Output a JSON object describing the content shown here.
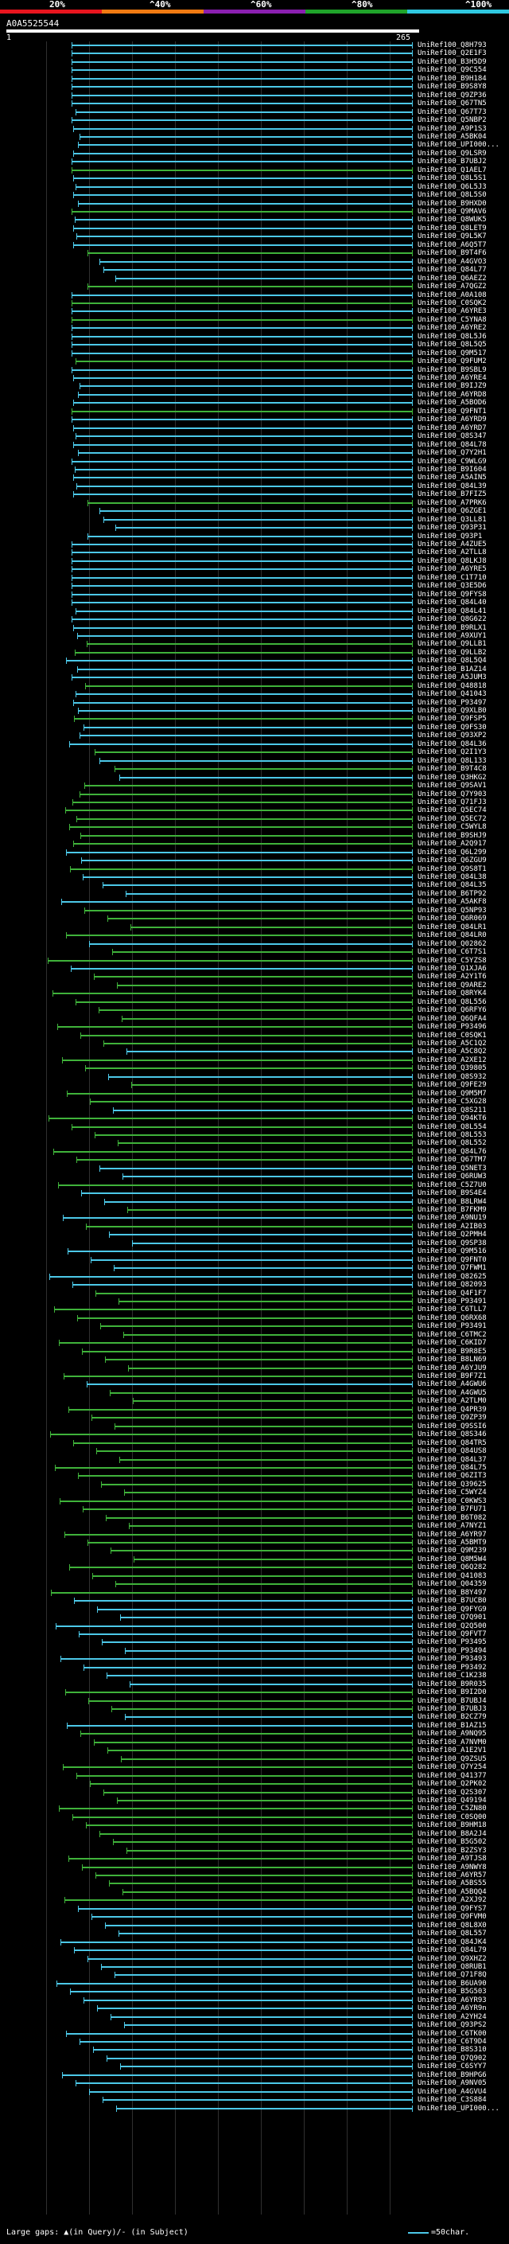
{
  "header": {
    "scale_labels": [
      "20%",
      "^40%",
      "^60%",
      "^80%",
      "^100%"
    ],
    "scale_colors": [
      "#e8151e",
      "#f07a12",
      "#8a1fb0",
      "#1fa32a",
      "#2fc8e0"
    ],
    "query_name": "A0A5525544",
    "range_start": "1",
    "range_end": "265"
  },
  "colors": {
    "cyan": "#4cc8e8",
    "green": "#3fb23a",
    "axis": "#2f2f2f"
  },
  "hits": [
    {
      "label": "UniRef100_Q8H793",
      "color": "cyan"
    },
    {
      "label": "UniRef100_Q2E1F3",
      "color": "cyan"
    },
    {
      "label": "UniRef100_B3H5D9",
      "color": "cyan"
    },
    {
      "label": "UniRef100_Q9C554",
      "color": "cyan"
    },
    {
      "label": "UniRef100_B9H184",
      "color": "cyan"
    },
    {
      "label": "UniRef100_B9S8Y8",
      "color": "cyan"
    },
    {
      "label": "UniRef100_Q9ZP36",
      "color": "cyan"
    },
    {
      "label": "UniRef100_Q67TN5",
      "color": "cyan"
    },
    {
      "label": "UniRef100_Q67T73",
      "color": "cyan"
    },
    {
      "label": "UniRef100_Q5NBP2",
      "color": "cyan"
    },
    {
      "label": "UniRef100_A9P1S3",
      "color": "cyan"
    },
    {
      "label": "UniRef100_A5BK04",
      "color": "cyan"
    },
    {
      "label": "UniRef100_UPI000...",
      "color": "cyan"
    },
    {
      "label": "UniRef100_Q9LSR9",
      "color": "cyan"
    },
    {
      "label": "UniRef100_B7UBJ2",
      "color": "cyan"
    },
    {
      "label": "UniRef100_Q1AEL7",
      "color": "green"
    },
    {
      "label": "UniRef100_Q8L5S1",
      "color": "cyan"
    },
    {
      "label": "UniRef100_Q6L5J3",
      "color": "cyan"
    },
    {
      "label": "UniRef100_Q8L5S0",
      "color": "cyan"
    },
    {
      "label": "UniRef100_B9HXD0",
      "color": "cyan"
    },
    {
      "label": "UniRef100_Q9MAV6",
      "color": "green"
    },
    {
      "label": "UniRef100_Q8WUK5",
      "color": "cyan"
    },
    {
      "label": "UniRef100_Q8LET9",
      "color": "cyan"
    },
    {
      "label": "UniRef100_Q9L5K7",
      "color": "cyan"
    },
    {
      "label": "UniRef100_A6Q5T7",
      "color": "cyan"
    },
    {
      "label": "UniRef100_B9T4F6",
      "color": "green"
    },
    {
      "label": "UniRef100_A4GVO3",
      "color": "cyan"
    },
    {
      "label": "UniRef100_Q84L77",
      "color": "cyan"
    },
    {
      "label": "UniRef100_Q6AEZ2",
      "color": "cyan"
    },
    {
      "label": "UniRef100_A7QGZ2",
      "color": "green"
    },
    {
      "label": "UniRef100_A0A108",
      "color": "cyan"
    },
    {
      "label": "UniRef100_C0SQK2",
      "color": "green"
    },
    {
      "label": "UniRef100_A6YRE3",
      "color": "cyan"
    },
    {
      "label": "UniRef100_C5YNA8",
      "color": "green"
    },
    {
      "label": "UniRef100_A6YRE2",
      "color": "cyan"
    },
    {
      "label": "UniRef100_Q8L5J6",
      "color": "cyan"
    },
    {
      "label": "UniRef100_Q8L5Q5",
      "color": "cyan"
    },
    {
      "label": "UniRef100_Q9M517",
      "color": "cyan"
    },
    {
      "label": "UniRef100_Q9FUM2",
      "color": "green"
    },
    {
      "label": "UniRef100_B9SBL9",
      "color": "cyan"
    },
    {
      "label": "UniRef100_A6YRE4",
      "color": "cyan"
    },
    {
      "label": "UniRef100_B9IJZ9",
      "color": "cyan"
    },
    {
      "label": "UniRef100_A6YRD8",
      "color": "cyan"
    },
    {
      "label": "UniRef100_A5BOD6",
      "color": "cyan"
    },
    {
      "label": "UniRef100_Q9FNT1",
      "color": "green"
    },
    {
      "label": "UniRef100_A6YRD9",
      "color": "cyan"
    },
    {
      "label": "UniRef100_A6YRD7",
      "color": "cyan"
    },
    {
      "label": "UniRef100_Q8S347",
      "color": "cyan"
    },
    {
      "label": "UniRef100_Q84L78",
      "color": "cyan"
    },
    {
      "label": "UniRef100_Q7Y2H1",
      "color": "cyan"
    },
    {
      "label": "UniRef100_C9WLG9",
      "color": "cyan"
    },
    {
      "label": "UniRef100_B9I604",
      "color": "cyan"
    },
    {
      "label": "UniRef100_A5AIN5",
      "color": "cyan"
    },
    {
      "label": "UniRef100_Q84L39",
      "color": "cyan"
    },
    {
      "label": "UniRef100_B7FIZ5",
      "color": "cyan"
    },
    {
      "label": "UniRef100_A7PRK6",
      "color": "green"
    },
    {
      "label": "UniRef100_Q6ZGE1",
      "color": "cyan"
    },
    {
      "label": "UniRef100_Q3LL81",
      "color": "cyan"
    },
    {
      "label": "UniRef100_Q93P31",
      "color": "cyan"
    },
    {
      "label": "UniRef100_Q93P1",
      "color": "cyan"
    },
    {
      "label": "UniRef100_A4ZUE5",
      "color": "cyan"
    },
    {
      "label": "UniRef100_A2TLL8",
      "color": "cyan"
    },
    {
      "label": "UniRef100_Q8LKJ8",
      "color": "cyan"
    },
    {
      "label": "UniRef100_A6YRE5",
      "color": "cyan"
    },
    {
      "label": "UniRef100_C1T710",
      "color": "cyan"
    },
    {
      "label": "UniRef100_Q3E5D6",
      "color": "cyan"
    },
    {
      "label": "UniRef100_Q9FYS8",
      "color": "cyan"
    },
    {
      "label": "UniRef100_Q84L40",
      "color": "cyan"
    },
    {
      "label": "UniRef100_Q84L41",
      "color": "cyan"
    },
    {
      "label": "UniRef100_Q8G622",
      "color": "cyan"
    },
    {
      "label": "UniRef100_B9RLX1",
      "color": "cyan"
    },
    {
      "label": "UniRef100_A9XUY1",
      "color": "cyan"
    },
    {
      "label": "UniRef100_Q9LLB1",
      "color": "green"
    },
    {
      "label": "UniRef100_Q9LLB2",
      "color": "green"
    },
    {
      "label": "UniRef100_Q8L5Q4",
      "color": "cyan"
    },
    {
      "label": "UniRef100_B1AZ14",
      "color": "cyan"
    },
    {
      "label": "UniRef100_A5JUM3",
      "color": "cyan"
    },
    {
      "label": "UniRef100_Q48818",
      "color": "green"
    },
    {
      "label": "UniRef100_Q41043",
      "color": "cyan"
    },
    {
      "label": "UniRef100_P93497",
      "color": "cyan"
    },
    {
      "label": "UniRef100_Q9XLB0",
      "color": "cyan"
    },
    {
      "label": "UniRef100_Q9FSP5",
      "color": "green"
    },
    {
      "label": "UniRef100_Q9FS30",
      "color": "cyan"
    },
    {
      "label": "UniRef100_Q93XP2",
      "color": "cyan"
    },
    {
      "label": "UniRef100_Q84L36",
      "color": "cyan"
    },
    {
      "label": "UniRef100_Q2I1Y3",
      "color": "green"
    },
    {
      "label": "UniRef100_Q8L133",
      "color": "cyan"
    },
    {
      "label": "UniRef100_B9T4C8",
      "color": "green"
    },
    {
      "label": "UniRef100_Q3HKG2",
      "color": "cyan"
    },
    {
      "label": "UniRef100_Q9SAV1",
      "color": "green"
    },
    {
      "label": "UniRef100_Q7Y903",
      "color": "green"
    },
    {
      "label": "UniRef100_Q71FJ3",
      "color": "green"
    },
    {
      "label": "UniRef100_Q5EC74",
      "color": "green"
    },
    {
      "label": "UniRef100_Q5EC72",
      "color": "green"
    },
    {
      "label": "UniRef100_C5WYL8",
      "color": "green"
    },
    {
      "label": "UniRef100_B9SHJ9",
      "color": "green"
    },
    {
      "label": "UniRef100_A2Q917",
      "color": "green"
    },
    {
      "label": "UniRef100_Q6L299",
      "color": "cyan"
    },
    {
      "label": "UniRef100_Q6ZGU9",
      "color": "cyan"
    },
    {
      "label": "UniRef100_Q9S8T1",
      "color": "green"
    },
    {
      "label": "UniRef100_Q84L38",
      "color": "cyan"
    },
    {
      "label": "UniRef100_Q84L35",
      "color": "cyan"
    },
    {
      "label": "UniRef100_B6TP92",
      "color": "cyan"
    },
    {
      "label": "UniRef100_A5AKF8",
      "color": "cyan"
    },
    {
      "label": "UniRef100_Q5NP93",
      "color": "green"
    },
    {
      "label": "UniRef100_Q6R069",
      "color": "green"
    },
    {
      "label": "UniRef100_Q84LR1",
      "color": "green"
    },
    {
      "label": "UniRef100_Q84LR0",
      "color": "green"
    },
    {
      "label": "UniRef100_Q02862",
      "color": "cyan"
    },
    {
      "label": "UniRef100_C6T7S1",
      "color": "green"
    },
    {
      "label": "UniRef100_C5YZS8",
      "color": "green"
    },
    {
      "label": "UniRef100_Q1XJA6",
      "color": "cyan"
    },
    {
      "label": "UniRef100_A2Y1T6",
      "color": "green"
    },
    {
      "label": "UniRef100_Q9ARE2",
      "color": "green"
    },
    {
      "label": "UniRef100_Q8RYK4",
      "color": "green"
    },
    {
      "label": "UniRef100_Q8L556",
      "color": "green"
    },
    {
      "label": "UniRef100_Q6RFY6",
      "color": "green"
    },
    {
      "label": "UniRef100_Q6QFA4",
      "color": "green"
    },
    {
      "label": "UniRef100_P93496",
      "color": "green"
    },
    {
      "label": "UniRef100_C0SQK1",
      "color": "green"
    },
    {
      "label": "UniRef100_A5C1Q2",
      "color": "green"
    },
    {
      "label": "UniRef100_A5C8Q2",
      "color": "cyan"
    },
    {
      "label": "UniRef100_A2XE12",
      "color": "green"
    },
    {
      "label": "UniRef100_Q39805",
      "color": "green"
    },
    {
      "label": "UniRef100_Q8S932",
      "color": "cyan"
    },
    {
      "label": "UniRef100_Q9FE29",
      "color": "green"
    },
    {
      "label": "UniRef100_Q9M5M7",
      "color": "green"
    },
    {
      "label": "UniRef100_C5XG28",
      "color": "green"
    },
    {
      "label": "UniRef100_Q8S211",
      "color": "cyan"
    },
    {
      "label": "UniRef100_Q94KT6",
      "color": "green"
    },
    {
      "label": "UniRef100_Q8L554",
      "color": "green"
    },
    {
      "label": "UniRef100_Q8L553",
      "color": "green"
    },
    {
      "label": "UniRef100_Q8L552",
      "color": "green"
    },
    {
      "label": "UniRef100_Q84L76",
      "color": "green"
    },
    {
      "label": "UniRef100_Q67TM7",
      "color": "green"
    },
    {
      "label": "UniRef100_Q5NET3",
      "color": "cyan"
    },
    {
      "label": "UniRef100_Q6RUW3",
      "color": "cyan"
    },
    {
      "label": "UniRef100_C5Z7U0",
      "color": "green"
    },
    {
      "label": "UniRef100_B9S4E4",
      "color": "cyan"
    },
    {
      "label": "UniRef100_B8LRW4",
      "color": "cyan"
    },
    {
      "label": "UniRef100_B7FKM9",
      "color": "green"
    },
    {
      "label": "UniRef100_A9NU19",
      "color": "cyan"
    },
    {
      "label": "UniRef100_A2IB03",
      "color": "green"
    },
    {
      "label": "UniRef100_Q2PMH4",
      "color": "cyan"
    },
    {
      "label": "UniRef100_Q9SP38",
      "color": "cyan"
    },
    {
      "label": "UniRef100_Q9M516",
      "color": "cyan"
    },
    {
      "label": "UniRef100_Q9FNT0",
      "color": "cyan"
    },
    {
      "label": "UniRef100_Q7FWM1",
      "color": "cyan"
    },
    {
      "label": "UniRef100_Q82625",
      "color": "cyan"
    },
    {
      "label": "UniRef100_Q82093",
      "color": "cyan"
    },
    {
      "label": "UniRef100_Q4F1F7",
      "color": "green"
    },
    {
      "label": "UniRef100_P93491",
      "color": "green"
    },
    {
      "label": "UniRef100_C6TLL7",
      "color": "green"
    },
    {
      "label": "UniRef100_Q6RX68",
      "color": "green"
    },
    {
      "label": "UniRef100_P93491",
      "color": "green"
    },
    {
      "label": "UniRef100_C6TMC2",
      "color": "green"
    },
    {
      "label": "UniRef100_C6KID7",
      "color": "green"
    },
    {
      "label": "UniRef100_B9R8E5",
      "color": "green"
    },
    {
      "label": "UniRef100_B8LN69",
      "color": "green"
    },
    {
      "label": "UniRef100_A6YJU9",
      "color": "green"
    },
    {
      "label": "UniRef100_B9F7Z1",
      "color": "green"
    },
    {
      "label": "UniRef100_A4GWU6",
      "color": "cyan"
    },
    {
      "label": "UniRef100_A4GWU5",
      "color": "green"
    },
    {
      "label": "UniRef100_A2TLM0",
      "color": "green"
    },
    {
      "label": "UniRef100_Q4PR39",
      "color": "green"
    },
    {
      "label": "UniRef100_Q9ZP39",
      "color": "green"
    },
    {
      "label": "UniRef100_Q9SSI6",
      "color": "green"
    },
    {
      "label": "UniRef100_Q8S346",
      "color": "green"
    },
    {
      "label": "UniRef100_Q84TR5",
      "color": "green"
    },
    {
      "label": "UniRef100_Q84US8",
      "color": "green"
    },
    {
      "label": "UniRef100_Q84L37",
      "color": "green"
    },
    {
      "label": "UniRef100_Q84L75",
      "color": "green"
    },
    {
      "label": "UniRef100_Q6ZIT3",
      "color": "green"
    },
    {
      "label": "UniRef100_Q39625",
      "color": "green"
    },
    {
      "label": "UniRef100_C5WYZ4",
      "color": "green"
    },
    {
      "label": "UniRef100_C0KWS3",
      "color": "green"
    },
    {
      "label": "UniRef100_B7FU71",
      "color": "green"
    },
    {
      "label": "UniRef100_B6T082",
      "color": "green"
    },
    {
      "label": "UniRef100_A7NYZ1",
      "color": "green"
    },
    {
      "label": "UniRef100_A6YR97",
      "color": "green"
    },
    {
      "label": "UniRef100_A5BMT9",
      "color": "green"
    },
    {
      "label": "UniRef100_Q9M239",
      "color": "green"
    },
    {
      "label": "UniRef100_Q8M5W4",
      "color": "green"
    },
    {
      "label": "UniRef100_Q6Q282",
      "color": "green"
    },
    {
      "label": "UniRef100_Q41083",
      "color": "green"
    },
    {
      "label": "UniRef100_Q04359",
      "color": "green"
    },
    {
      "label": "UniRef100_B8Y497",
      "color": "green"
    },
    {
      "label": "UniRef100_B7UCB0",
      "color": "cyan"
    },
    {
      "label": "UniRef100_Q9FYG9",
      "color": "cyan"
    },
    {
      "label": "UniRef100_Q7Q901",
      "color": "cyan"
    },
    {
      "label": "UniRef100_Q2Q500",
      "color": "cyan"
    },
    {
      "label": "UniRef100_Q9FVT7",
      "color": "cyan"
    },
    {
      "label": "UniRef100_P93495",
      "color": "cyan"
    },
    {
      "label": "UniRef100_P93494",
      "color": "cyan"
    },
    {
      "label": "UniRef100_P93493",
      "color": "cyan"
    },
    {
      "label": "UniRef100_P93492",
      "color": "cyan"
    },
    {
      "label": "UniRef100_C1K238",
      "color": "cyan"
    },
    {
      "label": "UniRef100_B9R035",
      "color": "cyan"
    },
    {
      "label": "UniRef100_B9I2D0",
      "color": "green"
    },
    {
      "label": "UniRef100_B7UBJ4",
      "color": "green"
    },
    {
      "label": "UniRef100_B7UBJ3",
      "color": "green"
    },
    {
      "label": "UniRef100_B2CZ79",
      "color": "cyan"
    },
    {
      "label": "UniRef100_B1AZ15",
      "color": "cyan"
    },
    {
      "label": "UniRef100_A9NQ95",
      "color": "green"
    },
    {
      "label": "UniRef100_A7NVM0",
      "color": "green"
    },
    {
      "label": "UniRef100_A1E2V1",
      "color": "green"
    },
    {
      "label": "UniRef100_Q9ZSU5",
      "color": "green"
    },
    {
      "label": "UniRef100_Q7Y254",
      "color": "green"
    },
    {
      "label": "UniRef100_Q41377",
      "color": "green"
    },
    {
      "label": "UniRef100_Q2PK02",
      "color": "green"
    },
    {
      "label": "UniRef100_Q2S307",
      "color": "green"
    },
    {
      "label": "UniRef100_Q49194",
      "color": "green"
    },
    {
      "label": "UniRef100_C5ZN80",
      "color": "green"
    },
    {
      "label": "UniRef100_C0SQ00",
      "color": "green"
    },
    {
      "label": "UniRef100_B9HM18",
      "color": "green"
    },
    {
      "label": "UniRef100_B8A2J4",
      "color": "green"
    },
    {
      "label": "UniRef100_B5G502",
      "color": "green"
    },
    {
      "label": "UniRef100_B2ZSY3",
      "color": "green"
    },
    {
      "label": "UniRef100_A9TJS8",
      "color": "green"
    },
    {
      "label": "UniRef100_A9NWY8",
      "color": "green"
    },
    {
      "label": "UniRef100_A6YR57",
      "color": "green"
    },
    {
      "label": "UniRef100_A5BS55",
      "color": "green"
    },
    {
      "label": "UniRef100_A5BQQ4",
      "color": "green"
    },
    {
      "label": "UniRef100_A2XJ92",
      "color": "green"
    },
    {
      "label": "UniRef100_Q9FYS7",
      "color": "cyan"
    },
    {
      "label": "UniRef100_Q9FVM0",
      "color": "cyan"
    },
    {
      "label": "UniRef100_Q8L8X0",
      "color": "cyan"
    },
    {
      "label": "UniRef100_Q8L557",
      "color": "cyan"
    },
    {
      "label": "UniRef100_Q84JK4",
      "color": "cyan"
    },
    {
      "label": "UniRef100_Q84L79",
      "color": "cyan"
    },
    {
      "label": "UniRef100_Q9XHZ2",
      "color": "cyan"
    },
    {
      "label": "UniRef100_Q8RUB1",
      "color": "cyan"
    },
    {
      "label": "UniRef100_Q71F8Q",
      "color": "cyan"
    },
    {
      "label": "UniRef100_B6UA90",
      "color": "cyan"
    },
    {
      "label": "UniRef100_B5G503",
      "color": "cyan"
    },
    {
      "label": "UniRef100_A6YR93",
      "color": "cyan"
    },
    {
      "label": "UniRef100_A6YR9n",
      "color": "cyan"
    },
    {
      "label": "UniRef100_A2YH24",
      "color": "cyan"
    },
    {
      "label": "UniRef100_Q93PS2",
      "color": "cyan"
    },
    {
      "label": "UniRef100_C6TK00",
      "color": "cyan"
    },
    {
      "label": "UniRef100_C6T9D4",
      "color": "cyan"
    },
    {
      "label": "UniRef100_B8S310",
      "color": "cyan"
    },
    {
      "label": "UniRef100_Q7Q902",
      "color": "cyan"
    },
    {
      "label": "UniRef100_C6SYY7",
      "color": "cyan"
    },
    {
      "label": "UniRef100_B9HPG6",
      "color": "cyan"
    },
    {
      "label": "UniRef100_A9NV05",
      "color": "cyan"
    },
    {
      "label": "UniRef100_A4GVU4",
      "color": "cyan"
    },
    {
      "label": "UniRef100_C3S884",
      "color": "cyan"
    },
    {
      "label": "UniRef100_UPI000...",
      "color": "cyan"
    }
  ],
  "legend": {
    "text": "Large gaps: ▲(in Query)/- (in Subject)",
    "scale_text": "=50char."
  }
}
